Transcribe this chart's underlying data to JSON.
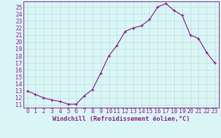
{
  "x": [
    0,
    1,
    2,
    3,
    4,
    5,
    6,
    7,
    8,
    9,
    10,
    11,
    12,
    13,
    14,
    15,
    16,
    17,
    18,
    19,
    20,
    21,
    22,
    23
  ],
  "y": [
    13,
    12.5,
    12,
    11.7,
    11.5,
    11.1,
    11.1,
    12.3,
    13.2,
    15.5,
    18,
    19.5,
    21.5,
    22,
    22.3,
    23.2,
    25,
    25.5,
    24.5,
    23.8,
    21,
    20.5,
    18.5,
    17
  ],
  "line_color": "#882288",
  "marker": "+",
  "marker_size": 3,
  "linewidth": 0.9,
  "bg_color": "#d9f5f5",
  "grid_color": "#bbdddd",
  "xlabel": "Windchill (Refroidissement éolien,°C)",
  "xlabel_fontsize": 6.5,
  "ylabel_ticks": [
    11,
    12,
    13,
    14,
    15,
    16,
    17,
    18,
    19,
    20,
    21,
    22,
    23,
    24,
    25
  ],
  "ylim": [
    10.6,
    25.8
  ],
  "xlim": [
    -0.5,
    23.5
  ],
  "tick_fontsize": 6,
  "axis_label_color": "#882288",
  "tick_color": "#882288",
  "spine_color": "#882288"
}
